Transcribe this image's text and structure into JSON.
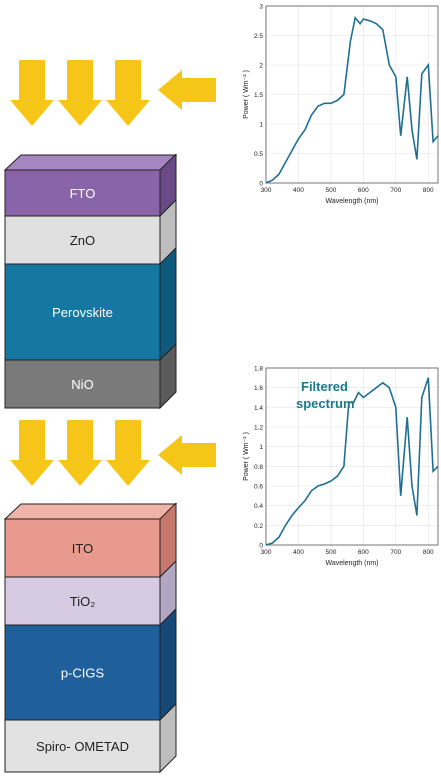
{
  "top_stack": {
    "layers": [
      {
        "label": "FTO",
        "face": "#8a64a8",
        "side": "#6a4a86",
        "top": "#a586c0",
        "h": 46
      },
      {
        "label": "ZnO",
        "face": "#e0e0e0",
        "side": "#bdbdbd",
        "h": 48
      },
      {
        "label": "Perovskite",
        "face": "#1677a3",
        "side": "#0f5a7c",
        "h": 96
      },
      {
        "label": "NiO",
        "face": "#7a7a7a",
        "side": "#5b5b5b",
        "h": 48
      }
    ]
  },
  "bottom_stack": {
    "layers": [
      {
        "label": "ITO",
        "face": "#e89a8e",
        "side": "#c7786c",
        "top": "#f0b3a8",
        "h": 58
      },
      {
        "label": "TiO₂",
        "face": "#d6cbe3",
        "side": "#b2a6c2",
        "h": 48
      },
      {
        "label": "p-CIGS",
        "face": "#1f5f9c",
        "side": "#164878",
        "h": 95
      },
      {
        "label": "Spiro- OMETAD",
        "face": "#e2e2e2",
        "side": "#bdbdbd",
        "h": 52
      }
    ]
  },
  "colors": {
    "arrow": "#f5c518",
    "line": "#1f6f95"
  },
  "chart_data": [
    {
      "type": "line",
      "xlabel": "Wavelength (nm)",
      "ylabel": "Power ( Wm⁻² )",
      "xlim": [
        300,
        830
      ],
      "ylim": [
        0,
        3
      ],
      "xticks": [
        300,
        400,
        500,
        600,
        700,
        800
      ],
      "yticks": [
        0,
        0.5,
        1,
        1.5,
        2,
        2.5,
        3
      ],
      "ytick_labels": [
        "0",
        "0.5",
        "1",
        "1.5",
        "2",
        "2.5",
        "3"
      ],
      "series": [
        {
          "x": [
            300,
            320,
            340,
            360,
            380,
            400,
            420,
            440,
            460,
            480,
            500,
            520,
            540,
            560,
            575,
            590,
            600,
            620,
            640,
            660,
            680,
            700,
            715,
            735,
            750,
            765,
            780,
            800,
            815,
            830
          ],
          "y": [
            0,
            0.05,
            0.15,
            0.35,
            0.55,
            0.75,
            0.9,
            1.15,
            1.3,
            1.35,
            1.35,
            1.4,
            1.5,
            2.4,
            2.8,
            2.7,
            2.78,
            2.75,
            2.7,
            2.6,
            2.0,
            1.8,
            0.8,
            1.8,
            0.9,
            0.4,
            1.85,
            2.0,
            0.7,
            0.8
          ]
        }
      ]
    },
    {
      "type": "line",
      "title": "Filtered spectrum",
      "xlabel": "Wavelength (nm)",
      "ylabel": "Power ( Wm⁻² )",
      "xlim": [
        300,
        830
      ],
      "ylim": [
        0,
        1.8
      ],
      "xticks": [
        300,
        400,
        500,
        600,
        700,
        800
      ],
      "yticks": [
        0,
        0.2,
        0.4,
        0.6,
        0.8,
        1,
        1.2,
        1.4,
        1.6,
        1.8
      ],
      "ytick_labels": [
        "0",
        "0.2",
        "0.4",
        "0.6",
        "0.8",
        "1",
        "1.2",
        "1.4",
        "1.6",
        "1.8"
      ],
      "series": [
        {
          "x": [
            300,
            320,
            340,
            360,
            380,
            400,
            420,
            440,
            460,
            480,
            500,
            520,
            540,
            555,
            570,
            585,
            600,
            620,
            640,
            660,
            680,
            700,
            715,
            735,
            750,
            765,
            780,
            800,
            815,
            830
          ],
          "y": [
            0,
            0.02,
            0.08,
            0.2,
            0.3,
            0.38,
            0.45,
            0.55,
            0.6,
            0.62,
            0.65,
            0.7,
            0.8,
            1.45,
            1.45,
            1.55,
            1.5,
            1.55,
            1.6,
            1.65,
            1.6,
            1.4,
            0.5,
            1.3,
            0.6,
            0.3,
            1.5,
            1.7,
            0.75,
            0.8
          ]
        }
      ]
    }
  ]
}
